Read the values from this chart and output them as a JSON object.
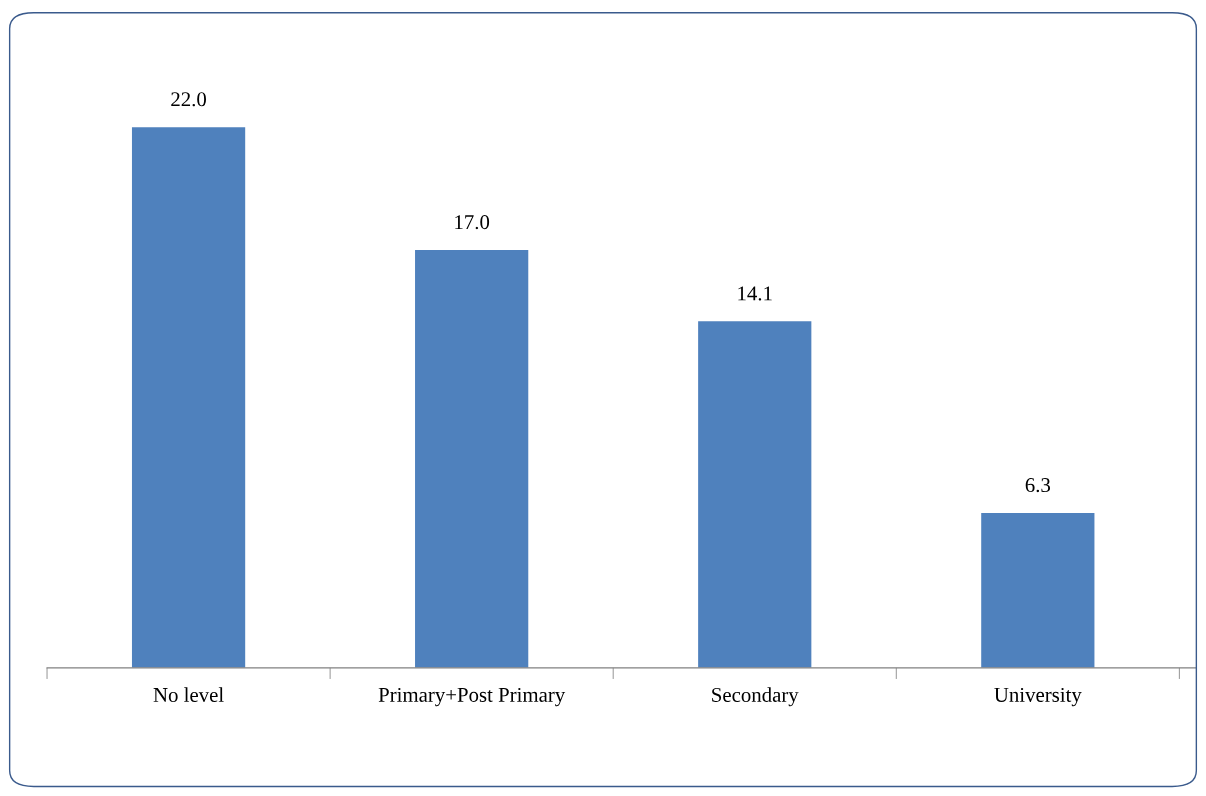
{
  "chart_data": {
    "type": "bar",
    "categories": [
      "No level",
      "Primary+Post Primary",
      "Secondary",
      "University"
    ],
    "values": [
      22.0,
      17.0,
      14.1,
      6.3
    ],
    "value_labels": [
      "22.0",
      "17.0",
      "14.1",
      "6.3"
    ],
    "color": "#4f81bd"
  }
}
